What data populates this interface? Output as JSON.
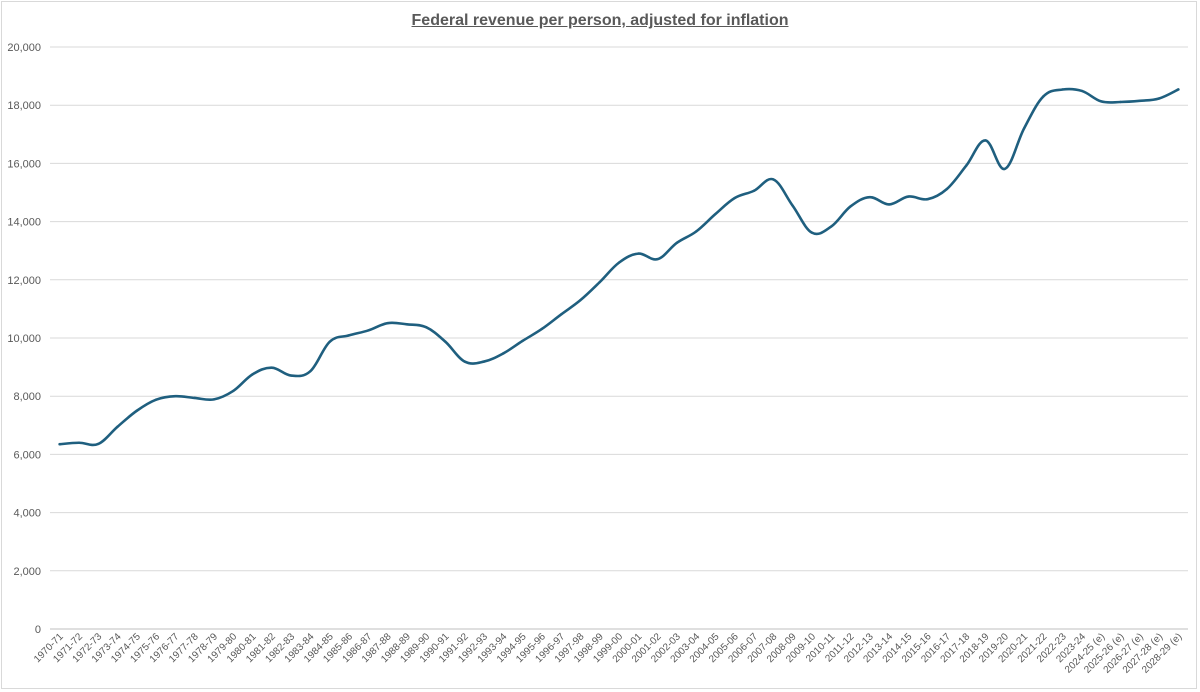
{
  "chart_data": {
    "type": "line",
    "title": "Federal revenue per person, adjusted for inflation",
    "xlabel": "",
    "ylabel": "",
    "ylim": [
      0,
      20000
    ],
    "yticks": [
      0,
      2000,
      4000,
      6000,
      8000,
      10000,
      12000,
      14000,
      16000,
      18000,
      20000
    ],
    "ytick_labels": [
      "0",
      "2,000",
      "4,000",
      "6,000",
      "8,000",
      "10,000",
      "12,000",
      "14,000",
      "16,000",
      "18,000",
      "20,000"
    ],
    "grid": true,
    "legend": "none",
    "line_color": "#1f5f7f",
    "categories": [
      "1970-71",
      "1971-72",
      "1972-73",
      "1973-74",
      "1974-75",
      "1975-76",
      "1976-77",
      "1977-78",
      "1978-79",
      "1979-80",
      "1980-81",
      "1981-82",
      "1982-83",
      "1983-84",
      "1984-85",
      "1985-86",
      "1986-87",
      "1987-88",
      "1988-89",
      "1989-90",
      "1990-91",
      "1991-92",
      "1992-93",
      "1993-94",
      "1994-95",
      "1995-96",
      "1996-97",
      "1997-98",
      "1998-99",
      "1999-00",
      "2000-01",
      "2001-02",
      "2002-03",
      "2003-04",
      "2004-05",
      "2005-06",
      "2006-07",
      "2007-08",
      "2008-09",
      "2009-10",
      "2010-11",
      "2011-12",
      "2012-13",
      "2013-14",
      "2014-15",
      "2015-16",
      "2016-17",
      "2017-18",
      "2018-19",
      "2019-20",
      "2020-21",
      "2021-22",
      "2022-23",
      "2023-24",
      "2024-25 (e)",
      "2025-26 (e)",
      "2026-27 (e)",
      "2027-28 (e)",
      "2028-29 (e)"
    ],
    "values": [
      6350,
      6400,
      6360,
      6950,
      7500,
      7880,
      8000,
      7940,
      7890,
      8180,
      8750,
      8980,
      8710,
      8860,
      9870,
      10090,
      10260,
      10510,
      10470,
      10370,
      9870,
      9190,
      9190,
      9470,
      9900,
      10310,
      10810,
      11300,
      11920,
      12590,
      12900,
      12710,
      13270,
      13660,
      14260,
      14810,
      15060,
      15450,
      14550,
      13620,
      13830,
      14520,
      14840,
      14590,
      14860,
      14770,
      15120,
      15920,
      16790,
      15810,
      17200,
      18300,
      18540,
      18490,
      18130,
      18110,
      18150,
      18230,
      18540
    ]
  }
}
